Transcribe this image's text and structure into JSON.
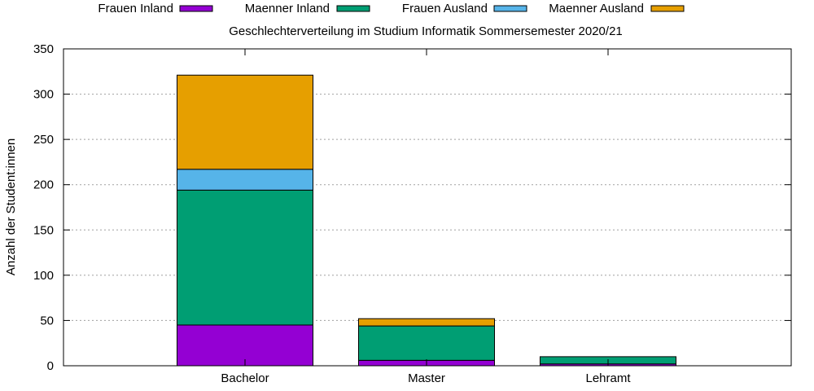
{
  "chart_data": {
    "type": "bar",
    "stacked": true,
    "title": "Geschlechterverteilung im Studium Informatik Sommersemester 2020/21",
    "xlabel": "",
    "ylabel": "Anzahl der Student:innen",
    "categories": [
      "Bachelor",
      "Master",
      "Lehramt"
    ],
    "ylim": [
      0,
      350
    ],
    "yticks": [
      0,
      50,
      100,
      150,
      200,
      250,
      300,
      350
    ],
    "grid": true,
    "legend_position": "top",
    "series": [
      {
        "name": "Frauen Inland",
        "color": "#9400d3",
        "values": [
          45,
          6,
          2
        ]
      },
      {
        "name": "Maenner Inland",
        "color": "#009e73",
        "values": [
          149,
          38,
          8
        ]
      },
      {
        "name": "Frauen Ausland",
        "color": "#56b4e9",
        "values": [
          23,
          0,
          0
        ]
      },
      {
        "name": "Maenner Ausland",
        "color": "#e69f00",
        "values": [
          104,
          8,
          0
        ]
      }
    ]
  }
}
